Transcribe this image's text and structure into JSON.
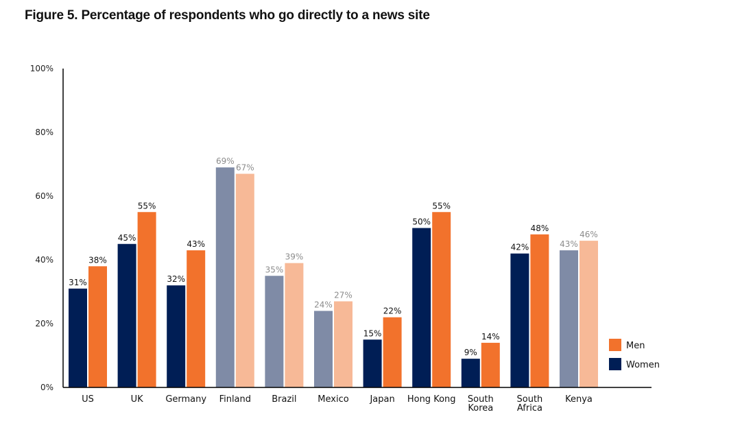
{
  "chart_data": {
    "type": "bar",
    "title": "Figure 5. Percentage of respondents who go directly to a news site",
    "xlabel": "",
    "ylabel": "",
    "ylim": [
      0,
      100
    ],
    "yticks": [
      "0%",
      "20%",
      "40%",
      "60%",
      "80%",
      "100%"
    ],
    "ytick_values": [
      0,
      20,
      40,
      60,
      80,
      100
    ],
    "grid": false,
    "legend_position": "bottom-right",
    "categories": [
      "US",
      "UK",
      "Germany",
      "Finland",
      "Brazil",
      "Mexico",
      "Japan",
      "Hong Kong",
      "South Korea",
      "South Africa",
      "Kenya"
    ],
    "category_lines": [
      [
        "US"
      ],
      [
        "UK"
      ],
      [
        "Germany"
      ],
      [
        "Finland"
      ],
      [
        "Brazil"
      ],
      [
        "Mexico"
      ],
      [
        "Japan"
      ],
      [
        "Hong Kong"
      ],
      [
        "South",
        "Korea"
      ],
      [
        "South",
        "Africa"
      ],
      [
        "Kenya"
      ]
    ],
    "highlighted": [
      true,
      true,
      true,
      false,
      false,
      false,
      true,
      true,
      true,
      true,
      false
    ],
    "series": [
      {
        "name": "Women",
        "values": [
          31,
          45,
          32,
          69,
          35,
          24,
          15,
          50,
          9,
          42,
          43
        ],
        "color": "#001e55",
        "muted_color": "#7f8ba6"
      },
      {
        "name": "Men",
        "values": [
          38,
          55,
          43,
          67,
          39,
          27,
          22,
          55,
          14,
          48,
          46
        ],
        "color": "#f2722c",
        "muted_color": "#f7b997"
      }
    ],
    "value_suffix": "%",
    "legend": [
      "Men",
      "Women"
    ]
  },
  "colors": {
    "label": "#111111",
    "muted_label": "#8c8c8c",
    "axis": "#000000"
  }
}
